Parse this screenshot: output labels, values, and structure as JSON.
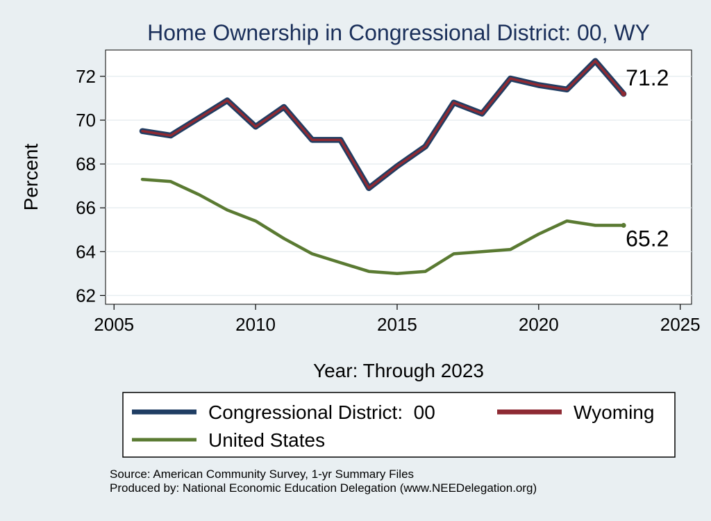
{
  "chart_data": {
    "type": "line",
    "title": "Home Ownership in Congressional District:  00, WY",
    "xlabel": "Year: Through 2023",
    "ylabel": "Percent",
    "xlim": [
      2004.7,
      2025.4
    ],
    "ylim": [
      61.6,
      73.2
    ],
    "xticks": [
      2005,
      2010,
      2015,
      2020,
      2025
    ],
    "yticks": [
      62,
      64,
      66,
      68,
      70,
      72
    ],
    "grid": true,
    "legend_placement": "bottom",
    "series": [
      {
        "name": "Congressional District:  00",
        "color": "#1f3d63",
        "x": [
          2006,
          2007,
          2008,
          2009,
          2010,
          2011,
          2012,
          2013,
          2014,
          2015,
          2016,
          2017,
          2018,
          2019,
          2020,
          2021,
          2022,
          2023
        ],
        "values": [
          69.5,
          69.3,
          70.1,
          70.9,
          69.7,
          70.6,
          69.1,
          69.1,
          66.9,
          67.9,
          68.8,
          70.8,
          70.3,
          71.9,
          71.6,
          71.4,
          72.7,
          71.2
        ]
      },
      {
        "name": "Wyoming",
        "color": "#8e2a33",
        "x": [
          2006,
          2007,
          2008,
          2009,
          2010,
          2011,
          2012,
          2013,
          2014,
          2015,
          2016,
          2017,
          2018,
          2019,
          2020,
          2021,
          2022,
          2023
        ],
        "values": [
          69.5,
          69.3,
          70.1,
          70.9,
          69.7,
          70.6,
          69.1,
          69.1,
          66.9,
          67.9,
          68.8,
          70.8,
          70.3,
          71.9,
          71.6,
          71.4,
          72.7,
          71.2
        ]
      },
      {
        "name": "United States",
        "color": "#5a7a32",
        "x": [
          2006,
          2007,
          2008,
          2009,
          2010,
          2011,
          2012,
          2013,
          2014,
          2015,
          2016,
          2017,
          2018,
          2019,
          2020,
          2021,
          2022,
          2023
        ],
        "values": [
          67.3,
          67.2,
          66.6,
          65.9,
          65.4,
          64.6,
          63.9,
          63.5,
          63.1,
          63.0,
          63.1,
          63.9,
          64.0,
          64.1,
          64.8,
          65.4,
          65.2,
          65.2
        ]
      }
    ],
    "end_labels": [
      {
        "series": "Wyoming",
        "text": "71.2"
      },
      {
        "series": "United States",
        "text": "65.2"
      }
    ]
  },
  "legend": {
    "items": [
      "Congressional District:  00",
      "Wyoming",
      "United States"
    ]
  },
  "footer": {
    "source": "Source: American Community Survey, 1-yr Summary Files",
    "produced_by": "Produced by: National Economic Education Delegation (www.NEEDelegation.org)"
  }
}
